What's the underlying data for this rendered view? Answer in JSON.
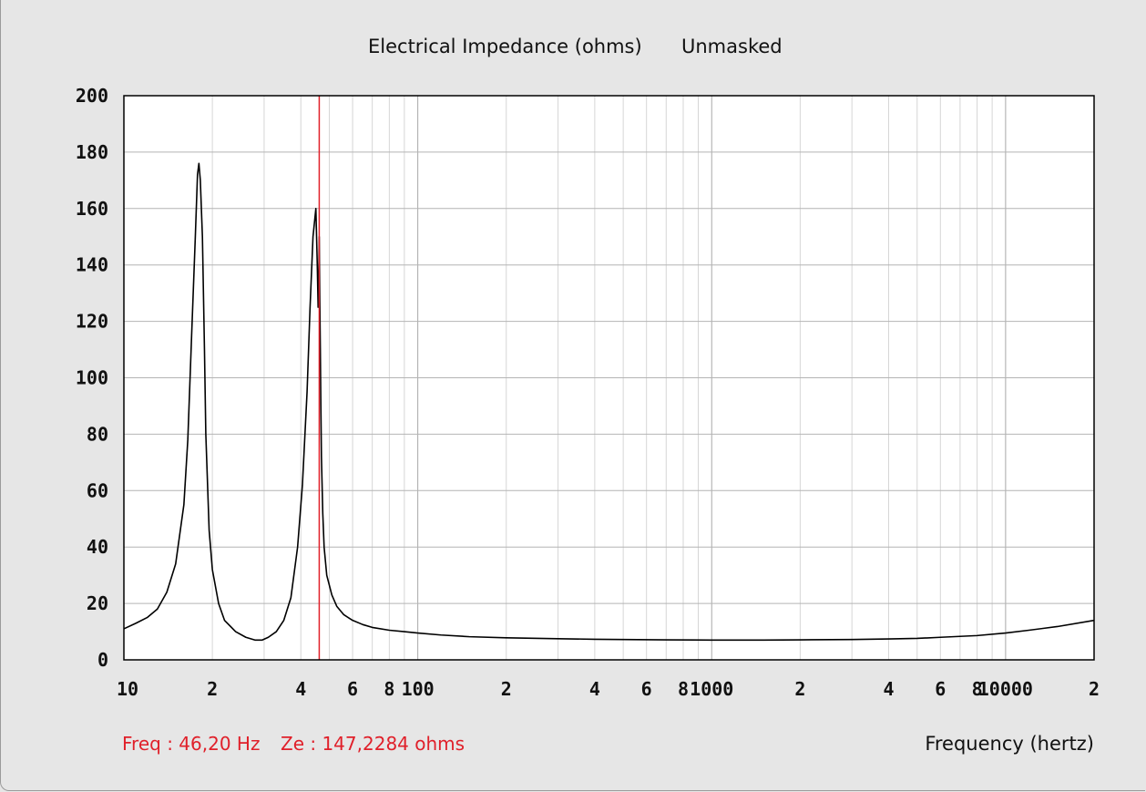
{
  "window": {
    "title_main": "Electrical Impedance (ohms)",
    "title_mode": "Unmasked"
  },
  "readout": {
    "freq": "Freq : 46,20 Hz",
    "ze": "Ze : 147,2284 ohms"
  },
  "chart_data": {
    "type": "line",
    "title": "Electrical Impedance (ohms)   Unmasked",
    "xlabel": "Frequency (hertz)",
    "ylabel": "",
    "x_scale": "log",
    "xlim": [
      10,
      20000
    ],
    "ylim": [
      0,
      200
    ],
    "y_ticks": [
      0,
      20,
      40,
      60,
      80,
      100,
      120,
      140,
      160,
      180,
      200
    ],
    "x_ticks": [
      {
        "value": 10,
        "label": "10"
      },
      {
        "value": 20,
        "label": "2"
      },
      {
        "value": 40,
        "label": "4"
      },
      {
        "value": 60,
        "label": "6"
      },
      {
        "value": 80,
        "label": "8"
      },
      {
        "value": 100,
        "label": "100"
      },
      {
        "value": 200,
        "label": "2"
      },
      {
        "value": 400,
        "label": "4"
      },
      {
        "value": 600,
        "label": "6"
      },
      {
        "value": 800,
        "label": "8"
      },
      {
        "value": 1000,
        "label": "1000"
      },
      {
        "value": 2000,
        "label": "2"
      },
      {
        "value": 4000,
        "label": "4"
      },
      {
        "value": 6000,
        "label": "6"
      },
      {
        "value": 8000,
        "label": "8"
      },
      {
        "value": 10000,
        "label": "10000"
      },
      {
        "value": 20000,
        "label": "2"
      }
    ],
    "grid": true,
    "cursor_x": 46.2,
    "series": [
      {
        "color": "#000000",
        "x": [
          10,
          11,
          12,
          13,
          14,
          15,
          16,
          16.5,
          17,
          17.5,
          17.8,
          18.0,
          18.2,
          18.5,
          18.8,
          19,
          19.5,
          20,
          21,
          22,
          24,
          26,
          28,
          29.5,
          31,
          33,
          35,
          37,
          39,
          40.5,
          42,
          43,
          44,
          45,
          45.5,
          45.8,
          46.0,
          46.2,
          46.4,
          46.6,
          46.8,
          47.0,
          47.5,
          48,
          49,
          51,
          53,
          56,
          60,
          65,
          70,
          80,
          90,
          100,
          120,
          150,
          200,
          300,
          400,
          500,
          700,
          1000,
          1500,
          2000,
          3000,
          4000,
          5000,
          6000,
          8000,
          10000,
          12000,
          15000,
          20000
        ],
        "y": [
          11,
          13,
          15,
          18,
          24,
          34,
          55,
          78,
          115,
          150,
          172,
          176,
          170,
          150,
          110,
          80,
          46,
          32,
          20,
          14,
          10,
          8,
          7,
          7,
          8,
          10,
          14,
          22,
          40,
          62,
          95,
          125,
          150,
          160,
          140,
          125,
          132,
          150,
          128,
          110,
          90,
          72,
          52,
          40,
          30,
          23,
          19,
          16,
          14,
          12.5,
          11.5,
          10.5,
          10,
          9.5,
          8.8,
          8.2,
          7.8,
          7.5,
          7.3,
          7.2,
          7.1,
          7,
          7,
          7.1,
          7.2,
          7.4,
          7.6,
          8,
          8.6,
          9.5,
          10.5,
          11.8,
          14
        ]
      }
    ]
  }
}
